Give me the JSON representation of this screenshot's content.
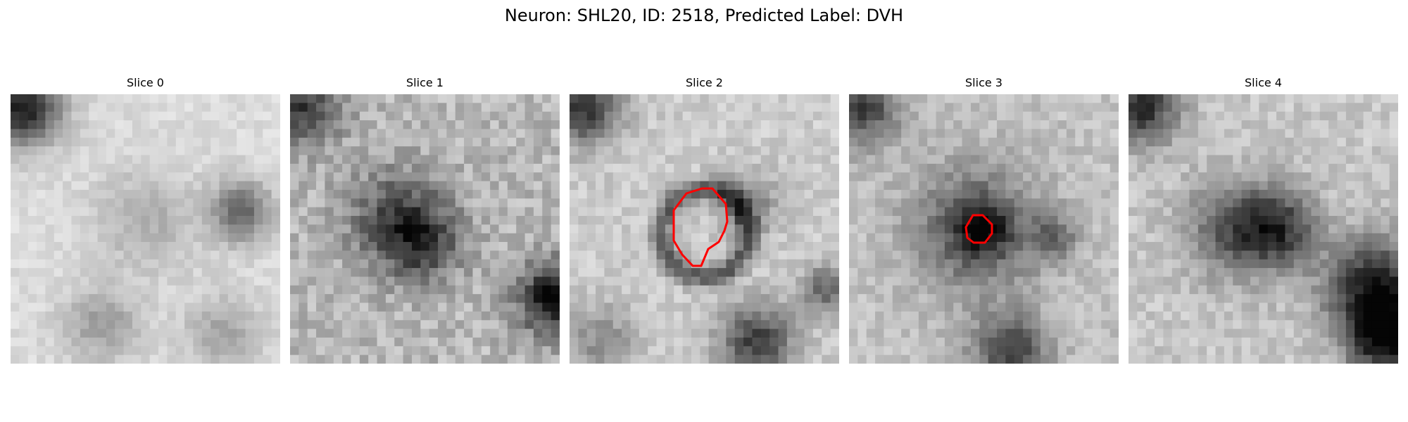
{
  "figure": {
    "title": "Neuron: SHL20, ID: 2518, Predicted Label: DVH"
  },
  "panels": [
    {
      "label": "Slice 0",
      "has_roi": false
    },
    {
      "label": "Slice 1",
      "has_roi": false
    },
    {
      "label": "Slice 2",
      "has_roi": true
    },
    {
      "label": "Slice 3",
      "has_roi": true
    },
    {
      "label": "Slice 4",
      "has_roi": false
    }
  ],
  "roi_color": "#ff0000"
}
